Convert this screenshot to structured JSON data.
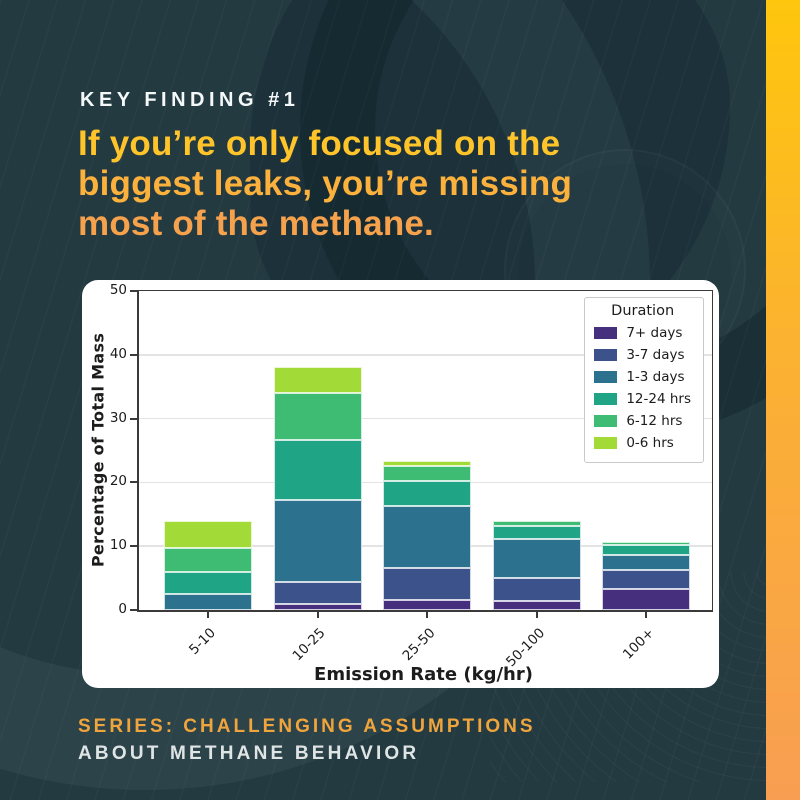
{
  "page": {
    "eyebrow": "KEY FINDING #1",
    "headline_lines": [
      "If you’re only focused on the",
      "biggest leaks, you’re missing",
      "most of the methane."
    ],
    "footer_line1": "SERIES: CHALLENGING ASSUMPTIONS",
    "footer_line2": "ABOUT METHANE BEHAVIOR",
    "colors": {
      "background": "#243a41",
      "headline_top": "#ffc42a",
      "headline_bottom": "#f6a14c",
      "eyebrow_text": "#f5f8f8",
      "footer_accent": "#f0a53c",
      "footer_text": "#dfe5e5",
      "side_bar_top": "#fec60d",
      "side_bar_bottom": "#f89e52",
      "panel_background": "#ffffff"
    }
  },
  "chart_data": {
    "type": "bar",
    "stacked": true,
    "title": "",
    "xlabel": "Emission Rate (kg/hr)",
    "ylabel": "Percentage of Total Mass",
    "ylim": [
      0,
      50
    ],
    "yticks": [
      0,
      10,
      20,
      30,
      40,
      50
    ],
    "grid": true,
    "legend_title": "Duration",
    "legend_position": "upper right",
    "categories": [
      "5-10",
      "10-25",
      "25-50",
      "50-100",
      "100+"
    ],
    "series": [
      {
        "name": "7+ days",
        "color": "#46307e",
        "values": [
          0,
          0.9,
          1.5,
          1.4,
          3.3
        ]
      },
      {
        "name": "3-7 days",
        "color": "#3b528b",
        "values": [
          0,
          3.5,
          5.1,
          3.6,
          2.9
        ]
      },
      {
        "name": "1-3 days",
        "color": "#2c728e",
        "values": [
          2.5,
          12.8,
          9.7,
          6.1,
          2.5
        ]
      },
      {
        "name": "12-24 hrs",
        "color": "#20a486",
        "values": [
          3.4,
          9.5,
          4.0,
          2.1,
          1.5
        ]
      },
      {
        "name": "6-12 hrs",
        "color": "#3ebc74",
        "values": [
          3.8,
          7.3,
          2.2,
          0.8,
          0.4
        ]
      },
      {
        "name": "0-6 hrs",
        "color": "#a2da37",
        "values": [
          4.2,
          4.1,
          0.8,
          0,
          0
        ]
      }
    ],
    "totals": [
      13.9,
      38.1,
      23.3,
      14.0,
      10.6
    ]
  }
}
